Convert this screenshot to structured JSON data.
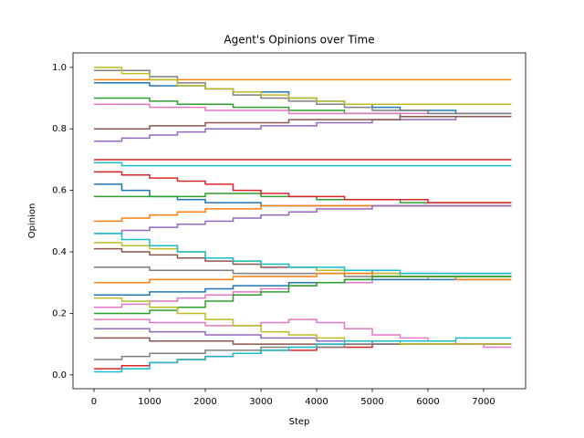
{
  "chart_data": {
    "type": "line",
    "drawstyle": "steps-post",
    "title": "Agent's Opinions over Time",
    "xlabel": "Step",
    "ylabel": "Opinion",
    "x": [
      0,
      500,
      1000,
      1500,
      2000,
      2500,
      3000,
      3500,
      4000,
      4500,
      5000,
      5500,
      6000,
      6500,
      7000,
      7500
    ],
    "xlim": [
      -377,
      7754
    ],
    "ylim": [
      -0.045,
      1.047
    ],
    "xticks": [
      0,
      1000,
      2000,
      3000,
      4000,
      5000,
      6000,
      7000
    ],
    "yticks": [
      {
        "value": 0,
        "label": "0.0"
      },
      {
        "value": 0.2,
        "label": "0.2"
      },
      {
        "value": 0.4,
        "label": "0.4"
      },
      {
        "value": 0.6,
        "label": "0.6"
      },
      {
        "value": 0.8,
        "label": "0.8"
      },
      {
        "value": 1,
        "label": "1.0"
      }
    ],
    "series": [
      {
        "color": "#1f77b4",
        "values": [
          0.95,
          0.95,
          0.94,
          0.94,
          0.93,
          0.92,
          0.92,
          0.9,
          0.89,
          0.88,
          0.87,
          0.86,
          0.86,
          0.85,
          0.85,
          0.85
        ]
      },
      {
        "color": "#ff7f0e",
        "values": [
          0.96,
          0.96,
          0.96,
          0.96,
          0.96,
          0.96,
          0.96,
          0.96,
          0.96,
          0.96,
          0.96,
          0.96,
          0.96,
          0.96,
          0.96,
          0.96
        ]
      },
      {
        "color": "#2ca02c",
        "values": [
          0.9,
          0.9,
          0.89,
          0.88,
          0.88,
          0.87,
          0.87,
          0.86,
          0.86,
          0.85,
          0.85,
          0.84,
          0.84,
          0.84,
          0.84,
          0.84
        ]
      },
      {
        "color": "#d62728",
        "values": [
          0.7,
          0.7,
          0.7,
          0.7,
          0.7,
          0.7,
          0.7,
          0.7,
          0.7,
          0.7,
          0.7,
          0.7,
          0.7,
          0.7,
          0.7,
          0.7
        ]
      },
      {
        "color": "#9467bd",
        "values": [
          0.76,
          0.77,
          0.78,
          0.79,
          0.8,
          0.8,
          0.81,
          0.81,
          0.82,
          0.82,
          0.83,
          0.83,
          0.83,
          0.84,
          0.84,
          0.84
        ]
      },
      {
        "color": "#8c564b",
        "values": [
          0.8,
          0.8,
          0.81,
          0.81,
          0.82,
          0.82,
          0.82,
          0.83,
          0.83,
          0.83,
          0.83,
          0.84,
          0.84,
          0.84,
          0.84,
          0.84
        ]
      },
      {
        "color": "#e377c2",
        "values": [
          0.88,
          0.88,
          0.87,
          0.87,
          0.86,
          0.86,
          0.86,
          0.85,
          0.85,
          0.85,
          0.85,
          0.85,
          0.85,
          0.85,
          0.85,
          0.85
        ]
      },
      {
        "color": "#7f7f7f",
        "values": [
          0.99,
          0.99,
          0.97,
          0.95,
          0.93,
          0.91,
          0.9,
          0.89,
          0.88,
          0.87,
          0.86,
          0.86,
          0.85,
          0.85,
          0.85,
          0.85
        ]
      },
      {
        "color": "#bcbd22",
        "values": [
          1.0,
          0.98,
          0.96,
          0.94,
          0.93,
          0.92,
          0.91,
          0.9,
          0.89,
          0.88,
          0.88,
          0.88,
          0.88,
          0.88,
          0.88,
          0.88
        ]
      },
      {
        "color": "#17becf",
        "values": [
          0.69,
          0.68,
          0.68,
          0.68,
          0.68,
          0.68,
          0.68,
          0.68,
          0.68,
          0.68,
          0.68,
          0.68,
          0.68,
          0.68,
          0.68,
          0.68
        ]
      },
      {
        "color": "#1f77b4",
        "values": [
          0.62,
          0.6,
          0.58,
          0.57,
          0.56,
          0.56,
          0.55,
          0.55,
          0.55,
          0.55,
          0.55,
          0.55,
          0.55,
          0.55,
          0.55,
          0.55
        ]
      },
      {
        "color": "#ff7f0e",
        "values": [
          0.5,
          0.51,
          0.52,
          0.53,
          0.54,
          0.54,
          0.55,
          0.55,
          0.55,
          0.55,
          0.55,
          0.55,
          0.55,
          0.55,
          0.55,
          0.55
        ]
      },
      {
        "color": "#2ca02c",
        "values": [
          0.58,
          0.58,
          0.58,
          0.58,
          0.59,
          0.59,
          0.58,
          0.58,
          0.57,
          0.57,
          0.57,
          0.56,
          0.56,
          0.56,
          0.56,
          0.56
        ]
      },
      {
        "color": "#d62728",
        "values": [
          0.66,
          0.65,
          0.64,
          0.63,
          0.62,
          0.6,
          0.59,
          0.58,
          0.58,
          0.57,
          0.57,
          0.57,
          0.56,
          0.56,
          0.56,
          0.56
        ]
      },
      {
        "color": "#9467bd",
        "values": [
          0.46,
          0.47,
          0.48,
          0.49,
          0.5,
          0.51,
          0.52,
          0.53,
          0.54,
          0.54,
          0.55,
          0.55,
          0.55,
          0.55,
          0.55,
          0.55
        ]
      },
      {
        "color": "#8c564b",
        "values": [
          0.41,
          0.4,
          0.39,
          0.38,
          0.37,
          0.36,
          0.35,
          0.35,
          0.34,
          0.34,
          0.33,
          0.33,
          0.33,
          0.33,
          0.33,
          0.33
        ]
      },
      {
        "color": "#e377c2",
        "values": [
          0.22,
          0.23,
          0.24,
          0.25,
          0.26,
          0.27,
          0.28,
          0.29,
          0.3,
          0.3,
          0.31,
          0.31,
          0.32,
          0.32,
          0.32,
          0.32
        ]
      },
      {
        "color": "#7f7f7f",
        "values": [
          0.35,
          0.35,
          0.34,
          0.34,
          0.34,
          0.33,
          0.33,
          0.33,
          0.33,
          0.32,
          0.32,
          0.32,
          0.32,
          0.32,
          0.32,
          0.32
        ]
      },
      {
        "color": "#bcbd22",
        "values": [
          0.43,
          0.42,
          0.41,
          0.4,
          0.38,
          0.37,
          0.36,
          0.35,
          0.34,
          0.33,
          0.33,
          0.32,
          0.32,
          0.32,
          0.32,
          0.32
        ]
      },
      {
        "color": "#17becf",
        "values": [
          0.46,
          0.44,
          0.42,
          0.4,
          0.38,
          0.37,
          0.36,
          0.35,
          0.35,
          0.34,
          0.34,
          0.33,
          0.33,
          0.33,
          0.33,
          0.33
        ]
      },
      {
        "color": "#1f77b4",
        "values": [
          0.26,
          0.26,
          0.27,
          0.27,
          0.28,
          0.29,
          0.29,
          0.3,
          0.3,
          0.31,
          0.31,
          0.31,
          0.31,
          0.31,
          0.31,
          0.31
        ]
      },
      {
        "color": "#ff7f0e",
        "values": [
          0.3,
          0.3,
          0.31,
          0.31,
          0.31,
          0.32,
          0.32,
          0.32,
          0.33,
          0.33,
          0.32,
          0.32,
          0.32,
          0.31,
          0.31,
          0.31
        ]
      },
      {
        "color": "#2ca02c",
        "values": [
          0.2,
          0.2,
          0.21,
          0.22,
          0.24,
          0.26,
          0.27,
          0.29,
          0.3,
          0.31,
          0.32,
          0.32,
          0.32,
          0.32,
          0.32,
          0.32
        ]
      },
      {
        "color": "#d62728",
        "values": [
          0.02,
          0.03,
          0.04,
          0.05,
          0.06,
          0.07,
          0.08,
          0.08,
          0.09,
          0.09,
          0.1,
          0.1,
          0.1,
          0.1,
          0.1,
          0.1
        ]
      },
      {
        "color": "#9467bd",
        "values": [
          0.15,
          0.15,
          0.14,
          0.14,
          0.13,
          0.13,
          0.12,
          0.12,
          0.11,
          0.11,
          0.1,
          0.1,
          0.1,
          0.1,
          0.1,
          0.1
        ]
      },
      {
        "color": "#8c564b",
        "values": [
          0.12,
          0.12,
          0.11,
          0.11,
          0.11,
          0.1,
          0.1,
          0.1,
          0.1,
          0.1,
          0.1,
          0.1,
          0.1,
          0.1,
          0.1,
          0.1
        ]
      },
      {
        "color": "#e377c2",
        "values": [
          0.18,
          0.18,
          0.17,
          0.17,
          0.16,
          0.16,
          0.17,
          0.18,
          0.17,
          0.15,
          0.13,
          0.12,
          0.11,
          0.1,
          0.09,
          0.09
        ]
      },
      {
        "color": "#7f7f7f",
        "values": [
          0.05,
          0.06,
          0.07,
          0.07,
          0.08,
          0.08,
          0.09,
          0.09,
          0.09,
          0.1,
          0.1,
          0.1,
          0.1,
          0.1,
          0.1,
          0.1
        ]
      },
      {
        "color": "#bcbd22",
        "values": [
          0.25,
          0.24,
          0.22,
          0.2,
          0.18,
          0.16,
          0.14,
          0.13,
          0.12,
          0.11,
          0.11,
          0.1,
          0.1,
          0.1,
          0.1,
          0.1
        ]
      },
      {
        "color": "#17becf",
        "values": [
          0.01,
          0.02,
          0.04,
          0.05,
          0.06,
          0.07,
          0.08,
          0.09,
          0.1,
          0.11,
          0.11,
          0.11,
          0.11,
          0.12,
          0.12,
          0.12
        ]
      }
    ]
  }
}
